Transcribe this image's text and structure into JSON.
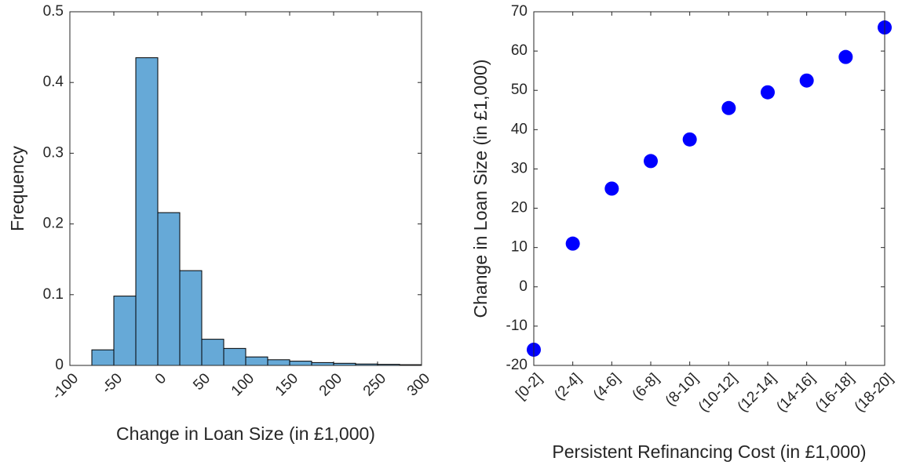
{
  "chart_data": [
    {
      "type": "histogram",
      "xlabel": "Change in Loan Size (in £1,000)",
      "ylabel": "Frequency",
      "bins": [
        -75,
        -50,
        -25,
        0,
        25,
        50,
        75,
        100,
        125,
        150,
        175,
        200,
        225,
        250,
        275,
        300
      ],
      "values": [
        0.022,
        0.098,
        0.435,
        0.216,
        0.134,
        0.037,
        0.024,
        0.012,
        0.008,
        0.006,
        0.004,
        0.003,
        0.002,
        0.0015,
        0.001
      ],
      "color": "#66a9d7",
      "xlim": [
        -100,
        300
      ],
      "xticks": [
        -100,
        -50,
        0,
        50,
        100,
        150,
        200,
        250,
        300
      ],
      "ylim": [
        0,
        0.5
      ],
      "yticks": [
        0,
        0.1,
        0.2,
        0.3,
        0.4,
        0.5
      ]
    },
    {
      "type": "scatter",
      "xlabel": "Persistent Refinancing Cost (in £1,000)",
      "ylabel": "Change in Loan Size (in £1,000)",
      "categories": [
        "[0-2]",
        "(2-4]",
        "(4-6]",
        "(6-8]",
        "(8-10]",
        "(10-12]",
        "(12-14]",
        "(14-16]",
        "(16-18]",
        "(18-20]"
      ],
      "values": [
        -16,
        11,
        25,
        32,
        37.5,
        45.5,
        49.5,
        52.5,
        58.5,
        66
      ],
      "color": "#0000ff",
      "ylim": [
        -20,
        70
      ],
      "yticks": [
        -20,
        -10,
        0,
        10,
        20,
        30,
        40,
        50,
        60,
        70
      ]
    }
  ]
}
